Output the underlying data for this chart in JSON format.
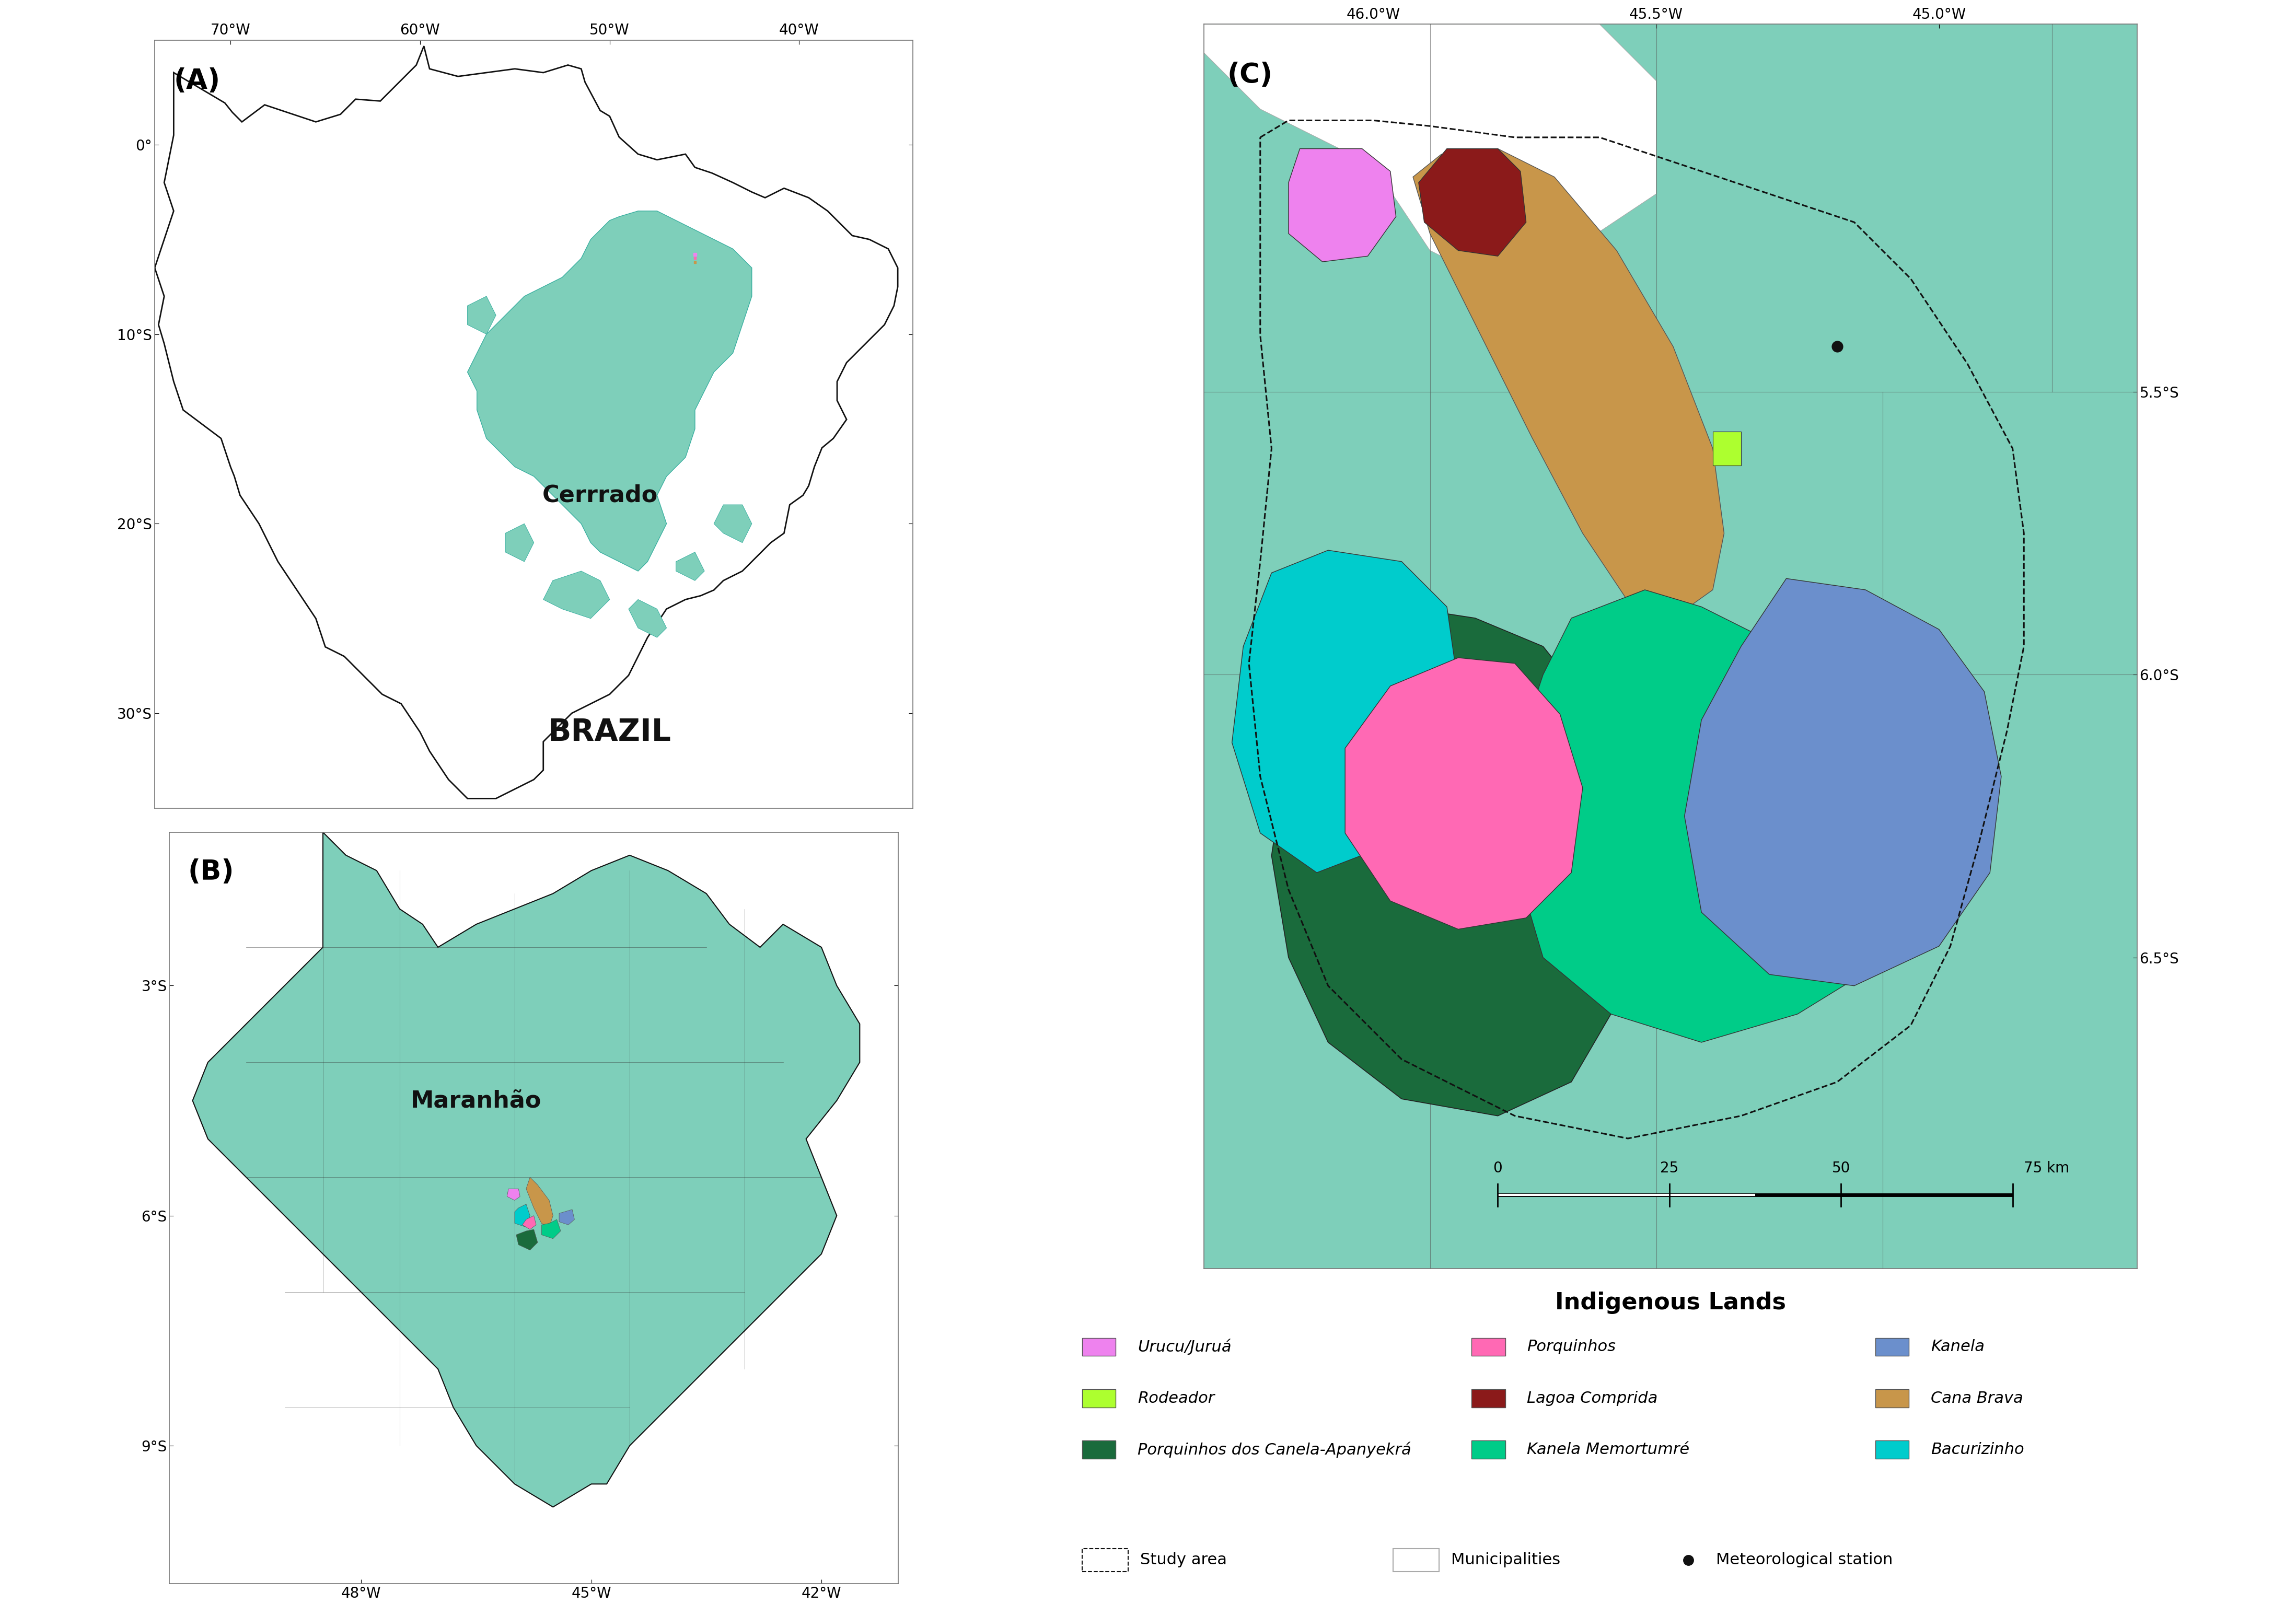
{
  "figure_width": 43.94,
  "figure_height": 30.93,
  "bg_color": "#FFFFFF",
  "cerrado_color": "#7ECFBA",
  "panel_bg": "#FFFFFF",
  "maranhao_bg": "#7ECFBA",
  "panel_c_bg": "#7ECFBA",
  "legend_title": "Indigenous Lands",
  "indigenous_lands": [
    {
      "name": "Urucu/Juruá",
      "color": "#EE82EE"
    },
    {
      "name": "Rodeador",
      "color": "#ADFF2F"
    },
    {
      "name": "Porquinhos dos Canela-Apanyekrá",
      "color": "#1A6B3C"
    },
    {
      "name": "Porquinhos",
      "color": "#FF69B4"
    },
    {
      "name": "Lagoa Comprida",
      "color": "#8B1A1A"
    },
    {
      "name": "Kanela Memortumré",
      "color": "#00CC88"
    },
    {
      "name": "Kanela",
      "color": "#6B8FCC"
    },
    {
      "name": "Cana Brava",
      "color": "#C8964A"
    },
    {
      "name": "Bacurizinho",
      "color": "#00CCCC"
    }
  ],
  "panel_labels": [
    "(A)",
    "(B)",
    "(C)"
  ],
  "brazil_label": "BRAZIL",
  "cerrado_label": "Cerrrado",
  "maranhao_label": "Maranhão"
}
